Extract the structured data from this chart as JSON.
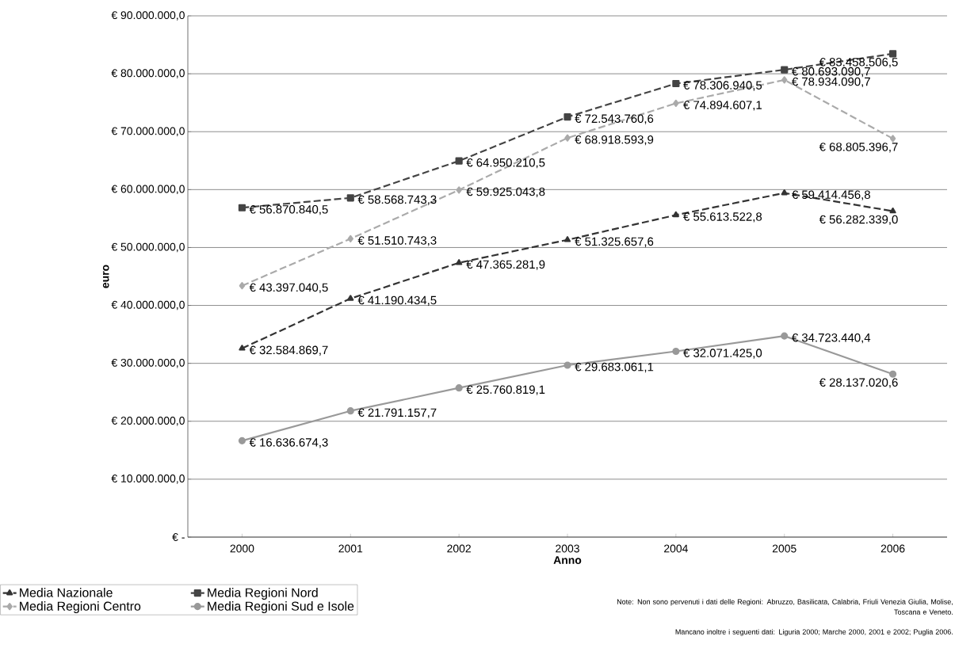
{
  "chart_data": {
    "type": "line",
    "xlabel": "Anno",
    "ylabel": "euro",
    "categories": [
      "2000",
      "2001",
      "2002",
      "2003",
      "2004",
      "2005",
      "2006"
    ],
    "ylim": [
      0,
      90000000
    ],
    "yticks": [
      {
        "value": 0,
        "label": "€ -"
      },
      {
        "value": 10000000,
        "label": "€ 10.000.000,0"
      },
      {
        "value": 20000000,
        "label": "€ 20.000.000,0"
      },
      {
        "value": 30000000,
        "label": "€ 30.000.000,0"
      },
      {
        "value": 40000000,
        "label": "€ 40.000.000,0"
      },
      {
        "value": 50000000,
        "label": "€ 50.000.000,0"
      },
      {
        "value": 60000000,
        "label": "€ 60.000.000,0"
      },
      {
        "value": 70000000,
        "label": "€ 70.000.000,0"
      },
      {
        "value": 80000000,
        "label": "€ 80.000.000,0"
      },
      {
        "value": 90000000,
        "label": "€ 90.000.000,0"
      }
    ],
    "grid": "y",
    "legend": "bottom left",
    "series": [
      {
        "name": "Media Nazionale",
        "color": "#333333",
        "marker": "triangle",
        "line_style": "dashed",
        "values": [
          32584869.7,
          41190434.5,
          47365281.9,
          51325657.6,
          55613522.8,
          59414456.8,
          56282339.0
        ],
        "value_labels": [
          "€ 32.584.869,7",
          "€ 41.190.434,5",
          "€ 47.365.281,9",
          "€ 51.325.657,6",
          "€ 55.613.522,8",
          "€ 59.414.456,8",
          "€ 56.282.339,0"
        ]
      },
      {
        "name": "Media Regioni Nord",
        "color": "#444444",
        "marker": "square",
        "line_style": "dashed",
        "values": [
          56870840.5,
          58568743.3,
          64950210.5,
          72543760.6,
          78306940.5,
          80693090.7,
          83458506.5
        ],
        "value_labels": [
          "€ 56.870.840,5",
          "€ 58.568.743,3",
          "€ 64.950.210,5",
          "€ 72.543.760,6",
          "€ 78.306.940,5",
          "€ 80.693.090,7",
          "€ 83.458.506,5"
        ]
      },
      {
        "name": "Media Regioni Centro",
        "color": "#aaaaaa",
        "marker": "diamond",
        "line_style": "dashed",
        "values": [
          43397040.5,
          51510743.3,
          59925043.8,
          68918593.9,
          74894607.1,
          78934090.7,
          68805396.7
        ],
        "value_labels": [
          "€ 43.397.040,5",
          "€ 51.510.743,3",
          "€ 59.925.043,8",
          "€ 68.918.593,9",
          "€ 74.894.607,1",
          "€ 78.934.090,7",
          "€ 68.805.396,7"
        ]
      },
      {
        "name": "Media Regioni Sud e Isole",
        "color": "#999999",
        "marker": "circle",
        "line_style": "solid",
        "values": [
          16636674.3,
          21791157.7,
          25760819.1,
          29683061.1,
          32071425.0,
          34723440.4,
          28137020.6
        ],
        "value_labels": [
          "€ 16.636.674,3",
          "€ 21.791.157,7",
          "€ 25.760.819,1",
          "€ 29.683.061,1",
          "€ 32.071.425,0",
          "€ 34.723.440,4",
          "€ 28.137.020,6"
        ]
      }
    ],
    "annotations": [
      "Note: Non sono pervenuti i dati delle Regioni: Abruzzo, Basilicata, Calabria, Friuli Venezia Giulia, Molise, Toscana e Veneto.",
      "Mancano inoltre i seguenti dati: Liguria 2000; Marche 2000, 2001 e 2002; Puglia 2006."
    ]
  }
}
